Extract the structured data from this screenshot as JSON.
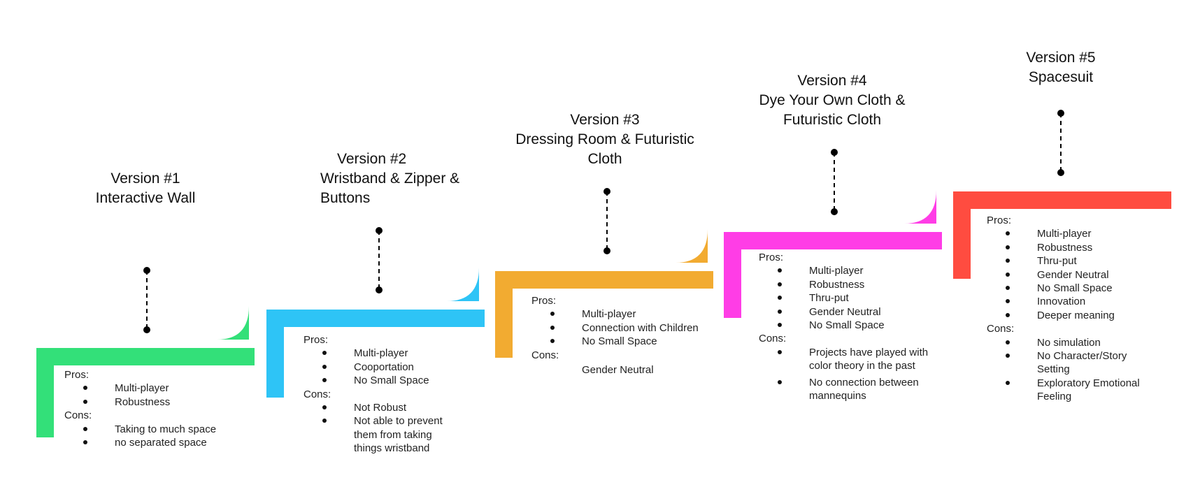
{
  "versions": [
    {
      "title_lines": [
        "Version #1",
        "Interactive Wall"
      ],
      "color": "#33E079",
      "pros_label": "Pros:",
      "pros": [
        "Multi-player",
        "Robustness"
      ],
      "cons_label": "Cons:",
      "cons": [
        "Taking to much space",
        "no separated space"
      ]
    },
    {
      "title_lines": [
        "Version #2",
        "Wristband & Zipper &",
        "Buttons"
      ],
      "color": "#2EC4F6",
      "pros_label": "Pros:",
      "pros": [
        "Multi-player",
        "Cooportation",
        "No Small Space"
      ],
      "cons_label": "Cons:",
      "cons": [
        "Not Robust",
        "Not able to prevent them from taking things wristband"
      ]
    },
    {
      "title_lines": [
        "Version #3",
        "Dressing Room & Futuristic",
        "Cloth"
      ],
      "color": "#F2AB31",
      "pros_label": "Pros:",
      "pros": [
        "Multi-player",
        "Connection with Children",
        "No Small Space"
      ],
      "cons_label": "Cons:",
      "cons": [
        "Gender Neutral"
      ]
    },
    {
      "title_lines": [
        "Version #4",
        "Dye Your Own Cloth &",
        "Futuristic Cloth"
      ],
      "color": "#FF3DE6",
      "pros_label": "Pros:",
      "pros": [
        "Multi-player",
        "Robustness",
        "Thru-put",
        "Gender Neutral",
        "No Small Space"
      ],
      "cons_label": "Cons:",
      "cons": [
        "Projects have played with color theory in the past",
        "No connection between mannequins"
      ]
    },
    {
      "title_lines": [
        "Version #5",
        "Spacesuit"
      ],
      "color": "#FF4C40",
      "pros_label": "Pros:",
      "pros": [
        "Multi-player",
        "Robustness",
        "Thru-put",
        "Gender Neutral",
        "No Small Space",
        "Innovation",
        "Deeper meaning"
      ],
      "cons_label": "Cons:",
      "cons": [
        "No simulation",
        "No Character/Story Setting",
        "Exploratory Emotional Feeling"
      ]
    }
  ]
}
